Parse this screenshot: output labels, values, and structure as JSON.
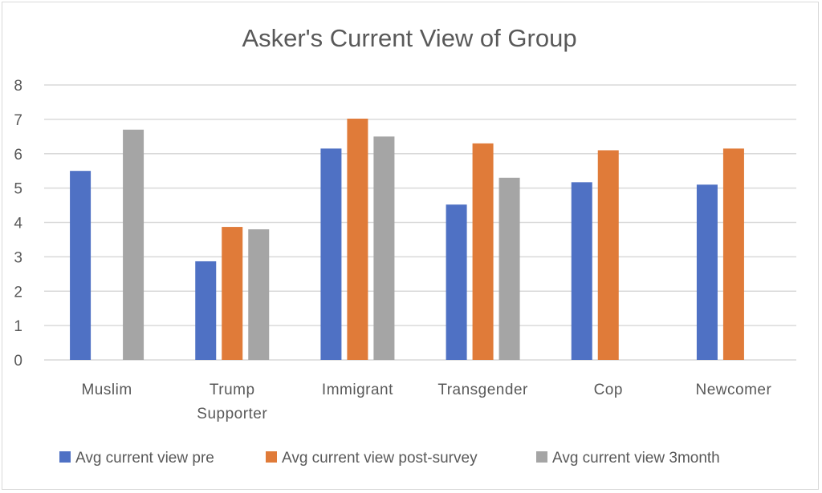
{
  "chart_data": {
    "type": "bar",
    "title": "Asker's Current View of Group",
    "categories": [
      [
        "Muslim"
      ],
      [
        "Trump",
        "Supporter"
      ],
      [
        "Immigrant"
      ],
      [
        "Transgender"
      ],
      [
        "Cop"
      ],
      [
        "Newcomer"
      ]
    ],
    "series": [
      {
        "name": "Avg current view pre",
        "color": "#4f71c4",
        "values": [
          5.5,
          2.87,
          6.15,
          4.52,
          5.17,
          5.1
        ]
      },
      {
        "name": "Avg current view post-survey",
        "color": "#e07b39",
        "values": [
          null,
          3.87,
          7.02,
          6.3,
          6.1,
          6.15
        ]
      },
      {
        "name": "Avg current view 3month",
        "color": "#a5a5a5",
        "values": [
          6.7,
          3.8,
          6.5,
          5.3,
          null,
          null
        ]
      }
    ],
    "ylim": [
      0,
      8
    ],
    "yticks": [
      "0",
      "1",
      "2",
      "3",
      "4",
      "5",
      "6",
      "7",
      "8"
    ],
    "grid": true,
    "legend_position": "bottom"
  }
}
